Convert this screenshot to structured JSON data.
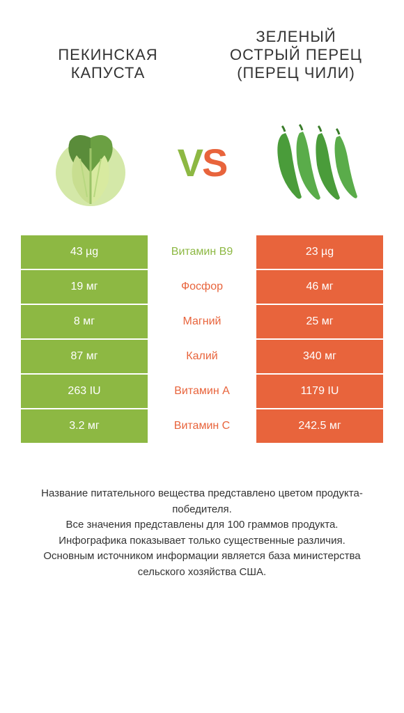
{
  "header": {
    "left_title": "ПЕКИНСКАЯ КАПУСТА",
    "right_title": "ЗЕЛЕНЫЙ ОСТРЫЙ ПЕРЕЦ (ПЕРЕЦ ЧИЛИ)"
  },
  "vs": {
    "v": "V",
    "s": "S"
  },
  "colors": {
    "green": "#8db843",
    "orange": "#e8643c",
    "background": "#ffffff",
    "text": "#333333"
  },
  "table": {
    "rows": [
      {
        "left": "43 µg",
        "center": "Витамин B9",
        "right": "23 µg",
        "winner": "left"
      },
      {
        "left": "19 мг",
        "center": "Фосфор",
        "right": "46 мг",
        "winner": "right"
      },
      {
        "left": "8 мг",
        "center": "Магний",
        "right": "25 мг",
        "winner": "right"
      },
      {
        "left": "87 мг",
        "center": "Калий",
        "right": "340 мг",
        "winner": "right"
      },
      {
        "left": "263 IU",
        "center": "Витамин A",
        "right": "1179 IU",
        "winner": "right"
      },
      {
        "left": "3.2 мг",
        "center": "Витамин C",
        "right": "242.5 мг",
        "winner": "right"
      }
    ]
  },
  "footer": {
    "line1": "Название питательного вещества представлено цветом продукта-победителя.",
    "line2": "Все значения представлены для 100 граммов продукта.",
    "line3": "Инфографика показывает только существенные различия.",
    "line4": "Основным источником информации является база министерства сельского хозяйства США."
  }
}
